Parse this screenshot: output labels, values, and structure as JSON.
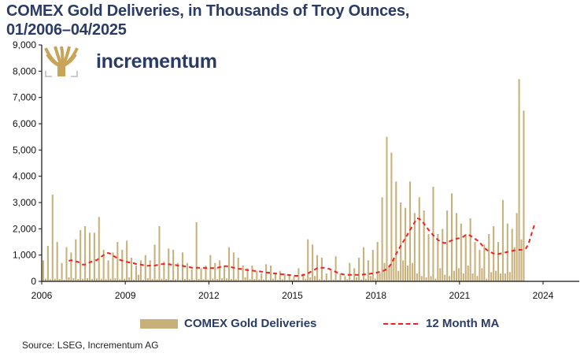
{
  "title_line1": "COMEX Gold Deliveries, in Thousands of Troy Ounces,",
  "title_line2": "01/2006–04/2025",
  "logo": {
    "text": "incrementum",
    "icon": "tree-logo-icon",
    "color": "#c8a45a"
  },
  "source": "Source: LSEG, Incrementum AG",
  "chart_data": {
    "type": "bar",
    "title": "COMEX Gold Deliveries, in Thousands of Troy Ounces, 01/2006–04/2025",
    "xlabel": "",
    "ylabel": "",
    "ylim": [
      0,
      9000
    ],
    "yticks": [
      "0",
      "1,000",
      "2,000",
      "3,000",
      "4,000",
      "5,000",
      "6,000",
      "7,000",
      "8,000",
      "9,000"
    ],
    "xticks": [
      "2006",
      "2009",
      "2012",
      "2015",
      "2018",
      "2021",
      "2024"
    ],
    "x_start": "2006-01",
    "x_end": "2025-04",
    "grid": false,
    "legend_position": "bottom",
    "colors": {
      "bars": "#c8b07a",
      "ma": "#ee2222",
      "text": "#2a3c66"
    },
    "series": [
      {
        "name": "COMEX Gold Deliveries",
        "type": "bar",
        "values": [
          800,
          100,
          1350,
          80,
          3300,
          100,
          1500,
          90,
          700,
          60,
          1300,
          150,
          1100,
          120,
          1600,
          90,
          1950,
          100,
          2100,
          120,
          1850,
          90,
          1850,
          110,
          2450,
          100,
          1200,
          80,
          800,
          100,
          1100,
          120,
          1500,
          80,
          1200,
          100,
          1550,
          150,
          900,
          70,
          600,
          250,
          800,
          60,
          1000,
          120,
          800,
          90,
          1400,
          80,
          2100,
          100,
          750,
          90,
          1250,
          60,
          1200,
          80,
          700,
          50,
          1100,
          90,
          700,
          80,
          450,
          60,
          2250,
          90,
          500,
          80,
          600,
          70,
          1000,
          100,
          700,
          90,
          800,
          120,
          600,
          110,
          1300,
          90,
          1100,
          80,
          900,
          50,
          600,
          150,
          500,
          80,
          600,
          90,
          400,
          80,
          300,
          70,
          650,
          50,
          600,
          100,
          300,
          60,
          400,
          80,
          300,
          50,
          250,
          70,
          200,
          60,
          500,
          50,
          300,
          100,
          1600,
          150,
          1400,
          200,
          1000,
          80,
          900,
          60,
          300,
          50,
          400,
          70,
          950,
          60,
          300,
          40,
          200,
          80,
          700,
          60,
          500,
          150,
          900,
          70,
          1300,
          100,
          800,
          200,
          1200,
          100,
          1500,
          300,
          3200,
          700,
          5500,
          600,
          4900,
          900,
          3800,
          400,
          3000,
          800,
          2800,
          600,
          3800,
          700,
          2600,
          300,
          3200,
          200,
          2700,
          150,
          1800,
          200,
          3600,
          100,
          1800,
          500,
          2000,
          250,
          2700,
          200,
          3350,
          400,
          2600,
          500,
          2200,
          300,
          1800,
          600,
          2400,
          300,
          1500,
          200,
          1200,
          500,
          1400,
          100,
          1800,
          350,
          2100,
          400,
          1500,
          300,
          3100,
          300,
          2200,
          350,
          2000,
          1300,
          2600,
          7700,
          1600,
          6500
        ]
      },
      {
        "name": "12 Month MA",
        "type": "line",
        "style": "dashed",
        "values": [
          null,
          null,
          null,
          null,
          null,
          null,
          null,
          null,
          null,
          null,
          null,
          780,
          800,
          790,
          760,
          740,
          700,
          640,
          640,
          680,
          720,
          760,
          800,
          800,
          880,
          940,
          1000,
          1060,
          1080,
          1050,
          980,
          930,
          880,
          820,
          790,
          760,
          740,
          720,
          700,
          690,
          660,
          650,
          640,
          620,
          600,
          590,
          600,
          600,
          600,
          620,
          640,
          650,
          660,
          660,
          650,
          640,
          630,
          620,
          600,
          590,
          590,
          570,
          560,
          540,
          520,
          520,
          520,
          520,
          520,
          520,
          510,
          500,
          500,
          500,
          520,
          520,
          540,
          560,
          580,
          580,
          560,
          540,
          520,
          500,
          480,
          470,
          460,
          440,
          430,
          420,
          410,
          400,
          390,
          380,
          370,
          360,
          340,
          330,
          320,
          310,
          300,
          290,
          280,
          270,
          260,
          250,
          240,
          230,
          220,
          210,
          210,
          220,
          240,
          260,
          300,
          350,
          400,
          450,
          500,
          520,
          520,
          520,
          500,
          480,
          440,
          400,
          360,
          320,
          290,
          270,
          250,
          250,
          250,
          250,
          250,
          250,
          250,
          250,
          260,
          270,
          280,
          290,
          300,
          320,
          340,
          360,
          380,
          420,
          480,
          560,
          680,
          860,
          1040,
          1200,
          1360,
          1500,
          1640,
          1800,
          1960,
          2100,
          2250,
          2400,
          2380,
          2300,
          2200,
          2080,
          1960,
          1860,
          1760,
          1660,
          1580,
          1520,
          1480,
          1460,
          1480,
          1520,
          1560,
          1600,
          1620,
          1640,
          1660,
          1700,
          1760,
          1780,
          1740,
          1680,
          1620,
          1560,
          1480,
          1380,
          1280,
          1200,
          1140,
          1100,
          1060,
          1040,
          1040,
          1060,
          1080,
          1100,
          1120,
          1140,
          1160,
          1180,
          1200,
          1200,
          1200,
          1220,
          1260,
          1420,
          1700,
          2000,
          2250
        ]
      }
    ]
  },
  "legend": {
    "bars": "COMEX Gold Deliveries",
    "ma": "12 Month MA"
  }
}
